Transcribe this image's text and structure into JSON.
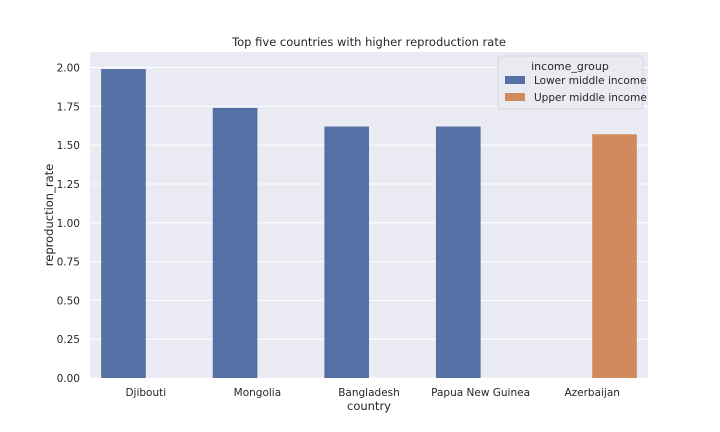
{
  "chart_data": {
    "type": "bar",
    "title": "Top five countries with higher reproduction rate",
    "xlabel": "country",
    "ylabel": "reproduction_rate",
    "categories": [
      "Djibouti",
      "Mongolia",
      "Bangladesh",
      "Papua New Guinea",
      "Azerbaijan"
    ],
    "ylim": [
      0,
      2.1
    ],
    "yticks": [
      "0.00",
      "0.25",
      "0.50",
      "0.75",
      "1.00",
      "1.25",
      "1.50",
      "1.75",
      "2.00"
    ],
    "grid": true,
    "legend_position": "top-right",
    "legend_title": "income_group",
    "series": [
      {
        "name": "Lower middle income",
        "color": "#5470a4",
        "values": [
          1.99,
          1.74,
          1.62,
          1.62,
          null
        ]
      },
      {
        "name": "Upper middle income",
        "color": "#d08a5c",
        "values": [
          null,
          null,
          null,
          null,
          1.57
        ]
      }
    ]
  },
  "colors": {
    "plot_background": "#eaeaf2",
    "grid": "#ffffff"
  }
}
